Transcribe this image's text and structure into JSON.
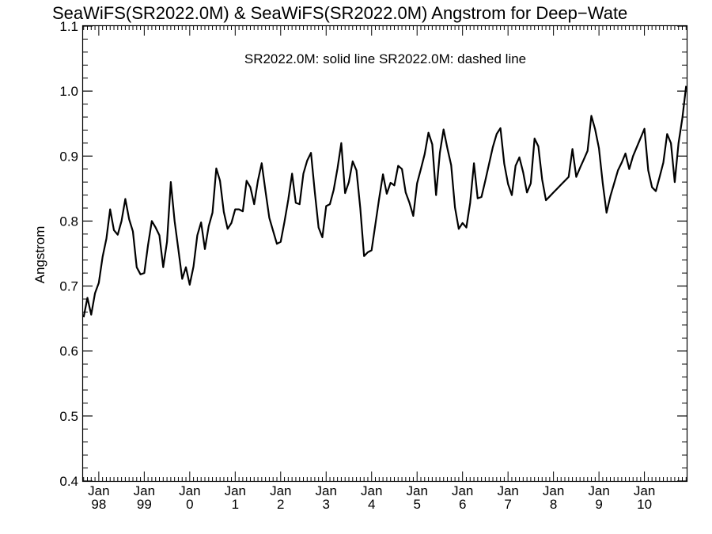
{
  "chart_data": {
    "type": "line",
    "title": "SeaWiFS(SR2022.0M) & SeaWiFS(SR2022.0M)  Angstrom for Deep−Wate",
    "ylabel": "Angstrom",
    "xlabel": "",
    "annotation": "SR2022.0M: solid line   SR2022.0M: dashed line",
    "ylim": [
      0.4,
      1.1
    ],
    "y_ticks": [
      "0.4",
      "0.5",
      "0.6",
      "0.7",
      "0.8",
      "0.9",
      "1.0",
      "1.1"
    ],
    "x_range": [
      "1997-09",
      "2010-12"
    ],
    "x_ticks": [
      {
        "date": "1998-01",
        "line1": "Jan",
        "line2": "98"
      },
      {
        "date": "1999-01",
        "line1": "Jan",
        "line2": "99"
      },
      {
        "date": "2000-01",
        "line1": "Jan",
        "line2": "0"
      },
      {
        "date": "2001-01",
        "line1": "Jan",
        "line2": "1"
      },
      {
        "date": "2002-01",
        "line1": "Jan",
        "line2": "2"
      },
      {
        "date": "2003-01",
        "line1": "Jan",
        "line2": "3"
      },
      {
        "date": "2004-01",
        "line1": "Jan",
        "line2": "4"
      },
      {
        "date": "2005-01",
        "line1": "Jan",
        "line2": "5"
      },
      {
        "date": "2006-01",
        "line1": "Jan",
        "line2": "6"
      },
      {
        "date": "2007-01",
        "line1": "Jan",
        "line2": "7"
      },
      {
        "date": "2008-01",
        "line1": "Jan",
        "line2": "8"
      },
      {
        "date": "2009-01",
        "line1": "Jan",
        "line2": "9"
      },
      {
        "date": "2010-01",
        "line1": "Jan",
        "line2": "10"
      }
    ],
    "series": [
      {
        "line_style": "solid",
        "color": "#000000",
        "points": [
          [
            "1997-09",
            0.652
          ],
          [
            "1997-10",
            0.682
          ],
          [
            "1997-11",
            0.656
          ],
          [
            "1997-12",
            0.689
          ],
          [
            "1998-01",
            0.705
          ],
          [
            "1998-02",
            0.745
          ],
          [
            "1998-03",
            0.773
          ],
          [
            "1998-04",
            0.818
          ],
          [
            "1998-05",
            0.786
          ],
          [
            "1998-06",
            0.779
          ],
          [
            "1998-07",
            0.8
          ],
          [
            "1998-08",
            0.834
          ],
          [
            "1998-09",
            0.803
          ],
          [
            "1998-10",
            0.784
          ],
          [
            "1998-11",
            0.729
          ],
          [
            "1998-12",
            0.718
          ],
          [
            "1999-01",
            0.72
          ],
          [
            "1999-02",
            0.763
          ],
          [
            "1999-03",
            0.8
          ],
          [
            "1999-04",
            0.79
          ],
          [
            "1999-05",
            0.778
          ],
          [
            "1999-06",
            0.729
          ],
          [
            "1999-07",
            0.768
          ],
          [
            "1999-08",
            0.86
          ],
          [
            "1999-09",
            0.8
          ],
          [
            "1999-10",
            0.756
          ],
          [
            "1999-11",
            0.711
          ],
          [
            "1999-12",
            0.729
          ],
          [
            "2000-01",
            0.702
          ],
          [
            "2000-02",
            0.73
          ],
          [
            "2000-03",
            0.778
          ],
          [
            "2000-04",
            0.798
          ],
          [
            "2000-05",
            0.757
          ],
          [
            "2000-06",
            0.792
          ],
          [
            "2000-07",
            0.813
          ],
          [
            "2000-08",
            0.881
          ],
          [
            "2000-09",
            0.862
          ],
          [
            "2000-10",
            0.814
          ],
          [
            "2000-11",
            0.788
          ],
          [
            "2000-12",
            0.797
          ],
          [
            "2001-01",
            0.818
          ],
          [
            "2001-02",
            0.818
          ],
          [
            "2001-03",
            0.815
          ],
          [
            "2001-04",
            0.862
          ],
          [
            "2001-05",
            0.852
          ],
          [
            "2001-06",
            0.826
          ],
          [
            "2001-07",
            0.862
          ],
          [
            "2001-08",
            0.889
          ],
          [
            "2001-09",
            0.846
          ],
          [
            "2001-10",
            0.805
          ],
          [
            "2001-11",
            0.785
          ],
          [
            "2001-12",
            0.765
          ],
          [
            "2002-01",
            0.768
          ],
          [
            "2002-02",
            0.799
          ],
          [
            "2002-03",
            0.833
          ],
          [
            "2002-04",
            0.873
          ],
          [
            "2002-05",
            0.828
          ],
          [
            "2002-06",
            0.826
          ],
          [
            "2002-07",
            0.873
          ],
          [
            "2002-08",
            0.893
          ],
          [
            "2002-09",
            0.905
          ],
          [
            "2002-10",
            0.845
          ],
          [
            "2002-11",
            0.79
          ],
          [
            "2002-12",
            0.775
          ],
          [
            "2003-01",
            0.823
          ],
          [
            "2003-02",
            0.826
          ],
          [
            "2003-03",
            0.848
          ],
          [
            "2003-04",
            0.881
          ],
          [
            "2003-05",
            0.92
          ],
          [
            "2003-06",
            0.843
          ],
          [
            "2003-07",
            0.86
          ],
          [
            "2003-08",
            0.892
          ],
          [
            "2003-09",
            0.878
          ],
          [
            "2003-10",
            0.82
          ],
          [
            "2003-11",
            0.746
          ],
          [
            "2003-12",
            0.752
          ],
          [
            "2004-01",
            0.755
          ],
          [
            "2004-02",
            0.795
          ],
          [
            "2004-03",
            0.835
          ],
          [
            "2004-04",
            0.872
          ],
          [
            "2004-05",
            0.842
          ],
          [
            "2004-06",
            0.859
          ],
          [
            "2004-07",
            0.855
          ],
          [
            "2004-08",
            0.885
          ],
          [
            "2004-09",
            0.88
          ],
          [
            "2004-10",
            0.844
          ],
          [
            "2004-11",
            0.828
          ],
          [
            "2004-12",
            0.808
          ],
          [
            "2005-01",
            0.858
          ],
          [
            "2005-02",
            0.88
          ],
          [
            "2005-03",
            0.903
          ],
          [
            "2005-04",
            0.936
          ],
          [
            "2005-05",
            0.918
          ],
          [
            "2005-06",
            0.84
          ],
          [
            "2005-07",
            0.905
          ],
          [
            "2005-08",
            0.941
          ],
          [
            "2005-09",
            0.912
          ],
          [
            "2005-10",
            0.886
          ],
          [
            "2005-11",
            0.821
          ],
          [
            "2005-12",
            0.788
          ],
          [
            "2006-01",
            0.797
          ],
          [
            "2006-02",
            0.79
          ],
          [
            "2006-03",
            0.828
          ],
          [
            "2006-04",
            0.889
          ],
          [
            "2006-05",
            0.835
          ],
          [
            "2006-06",
            0.837
          ],
          [
            "2006-07",
            0.862
          ],
          [
            "2006-08",
            0.888
          ],
          [
            "2006-09",
            0.914
          ],
          [
            "2006-10",
            0.934
          ],
          [
            "2006-11",
            0.943
          ],
          [
            "2006-12",
            0.888
          ],
          [
            "2007-01",
            0.857
          ],
          [
            "2007-02",
            0.84
          ],
          [
            "2007-03",
            0.885
          ],
          [
            "2007-04",
            0.898
          ],
          [
            "2007-05",
            0.875
          ],
          [
            "2007-06",
            0.844
          ],
          [
            "2007-07",
            0.858
          ],
          [
            "2007-08",
            0.927
          ],
          [
            "2007-09",
            0.915
          ],
          [
            "2007-10",
            0.864
          ],
          [
            "2007-11",
            0.832
          ],
          [
            "2007-12",
            0.838
          ],
          [
            "2008-01",
            0.844
          ],
          [
            "2008-02",
            0.85
          ],
          [
            "2008-03",
            0.856
          ],
          [
            "2008-04",
            0.862
          ],
          [
            "2008-05",
            0.868
          ],
          [
            "2008-06",
            0.911
          ],
          [
            "2008-07",
            0.868
          ],
          [
            "2008-08",
            0.882
          ],
          [
            "2008-09",
            0.895
          ],
          [
            "2008-10",
            0.908
          ],
          [
            "2008-11",
            0.962
          ],
          [
            "2008-12",
            0.941
          ],
          [
            "2009-01",
            0.912
          ],
          [
            "2009-02",
            0.858
          ],
          [
            "2009-03",
            0.813
          ],
          [
            "2009-04",
            0.838
          ],
          [
            "2009-05",
            0.858
          ],
          [
            "2009-06",
            0.878
          ],
          [
            "2009-07",
            0.89
          ],
          [
            "2009-08",
            0.904
          ],
          [
            "2009-09",
            0.88
          ],
          [
            "2009-10",
            0.9
          ],
          [
            "2009-11",
            0.914
          ],
          [
            "2009-12",
            0.928
          ],
          [
            "2010-01",
            0.942
          ],
          [
            "2010-02",
            0.878
          ],
          [
            "2010-03",
            0.852
          ],
          [
            "2010-04",
            0.846
          ],
          [
            "2010-05",
            0.868
          ],
          [
            "2010-06",
            0.89
          ],
          [
            "2010-07",
            0.934
          ],
          [
            "2010-08",
            0.92
          ],
          [
            "2010-09",
            0.86
          ],
          [
            "2010-10",
            0.92
          ],
          [
            "2010-11",
            0.958
          ],
          [
            "2010-12",
            1.008
          ]
        ]
      }
    ],
    "grid": false,
    "colors": {
      "axis": "#000000",
      "background": "#ffffff"
    }
  }
}
